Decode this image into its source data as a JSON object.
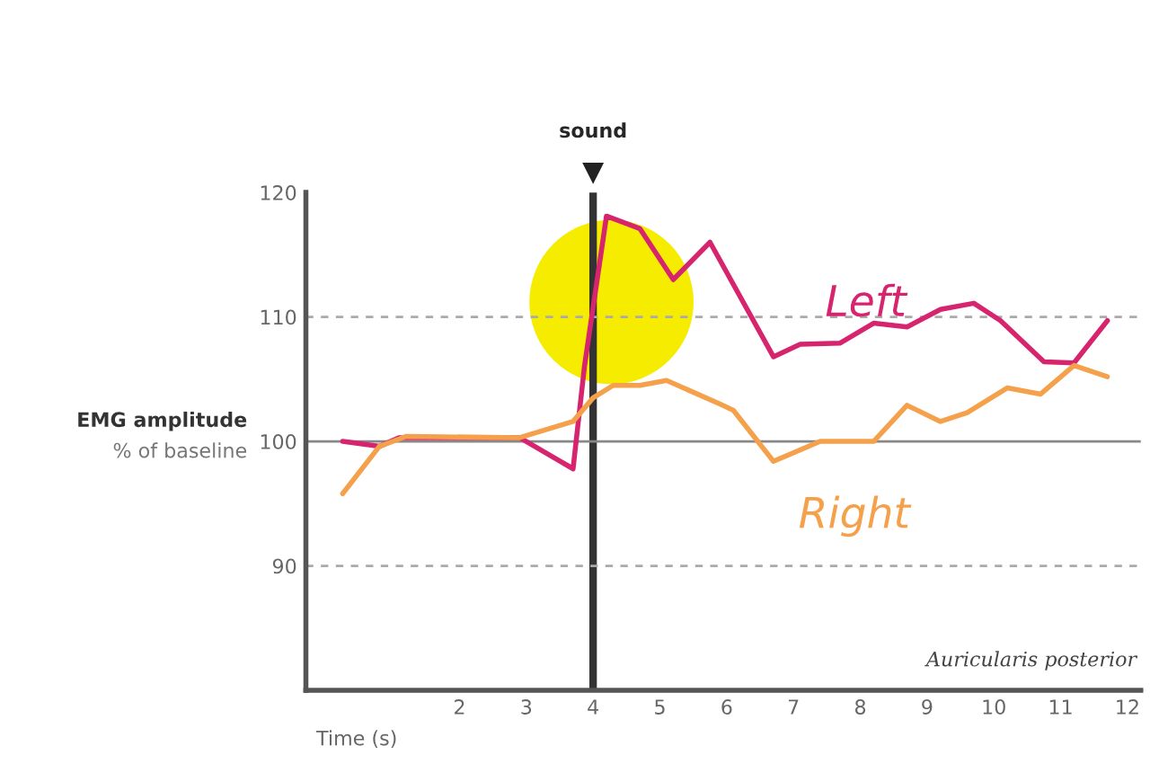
{
  "chart_data": {
    "type": "line",
    "ylabel": "EMG amplitude",
    "xlabel": "Time (s)",
    "annotations": [
      "% of baseline",
      "Auricularis posterior"
    ],
    "x": [
      0.25,
      0.8,
      1.1,
      2.9,
      3.7,
      3.87,
      4.2,
      4.7,
      5.2,
      5.75,
      6.7,
      7.1,
      7.7,
      8.2,
      8.7,
      9.2,
      9.7,
      10.1,
      10.75,
      11.2,
      11.7
    ],
    "series": [
      {
        "name": "Left",
        "color": "#d6246e",
        "values": [
          100,
          99.6,
          100.3,
          100.3,
          97.8,
          106,
          118.1,
          117.1,
          113,
          116,
          106.8,
          107.8,
          107.9,
          109.5,
          109.2,
          110.6,
          111.1,
          109.7,
          106.4,
          106.3,
          109.7
        ]
      },
      {
        "name": "Right",
        "color": "#f5a04a",
        "x": [
          0.25,
          0.8,
          1.2,
          2.9,
          3.7,
          4.0,
          4.3,
          4.7,
          5.1,
          5.9,
          6.1,
          6.7,
          7.4,
          8.2,
          8.7,
          9.2,
          9.6,
          10.2,
          10.7,
          11.2,
          11.7
        ],
        "values": [
          95.8,
          99.6,
          100.4,
          100.3,
          101.6,
          103.5,
          104.5,
          104.5,
          104.9,
          103,
          102.5,
          98.4,
          100,
          100,
          102.9,
          101.6,
          102.3,
          104.3,
          103.8,
          106.1,
          105.2
        ]
      }
    ],
    "xlim": [
      -0.3,
      12.2
    ],
    "xticks": [
      2,
      3,
      4,
      5,
      6,
      7,
      8,
      9,
      10,
      11,
      12
    ],
    "ylim": [
      80,
      120
    ],
    "yticks": [
      90,
      100,
      110,
      120
    ],
    "ref_lines": [
      {
        "axis": "x",
        "value": 4,
        "label": "sound",
        "color": "#333333",
        "line_style": "solid"
      },
      {
        "axis": "y",
        "value": 110,
        "color": "#aaaaaa",
        "line_style": "dashed"
      },
      {
        "axis": "y",
        "value": 100,
        "color": "#888888",
        "line_style": "solid"
      },
      {
        "axis": "y",
        "value": 90,
        "color": "#aaaaaa",
        "line_style": "dashed"
      }
    ],
    "grid": false,
    "legend": false,
    "marker": "none",
    "line_style": "solid"
  }
}
